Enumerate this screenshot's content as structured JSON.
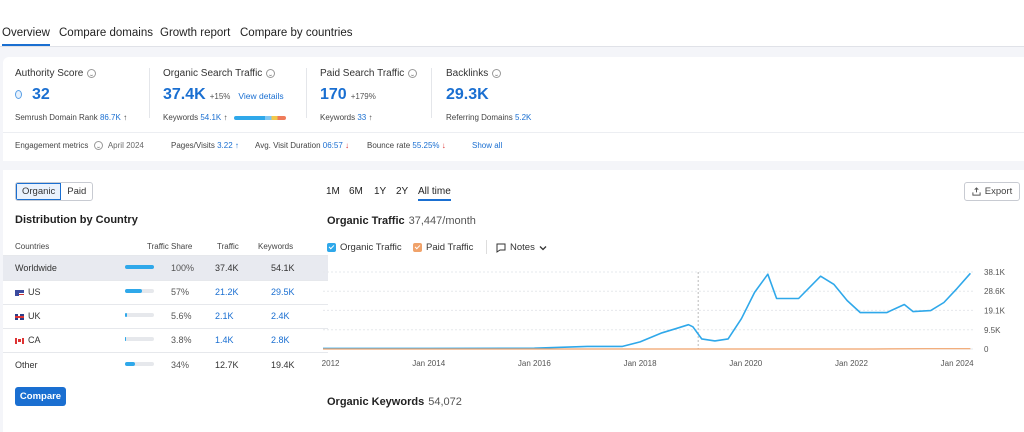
{
  "tabs": [
    {
      "label": "Overview",
      "active": true
    },
    {
      "label": "Compare domains"
    },
    {
      "label": "Growth report"
    },
    {
      "label": "Compare by countries"
    }
  ],
  "metrics": {
    "authority": {
      "label": "Authority Score",
      "value": "32",
      "sub_label": "Semrush Domain Rank",
      "sub_value": "86.7K",
      "sub_arrow": "↑"
    },
    "organic": {
      "label": "Organic Search Traffic",
      "value": "37.4K",
      "change": "+15%",
      "link": "View details",
      "sub_label": "Keywords",
      "sub_value": "54.1K",
      "sub_arrow": "↑"
    },
    "paid": {
      "label": "Paid Search Traffic",
      "value": "170",
      "change": "+179%",
      "sub_label": "Keywords",
      "sub_value": "33",
      "sub_arrow": "↑"
    },
    "backlinks": {
      "label": "Backlinks",
      "value": "29.3K",
      "sub_label": "Referring Domains",
      "sub_value": "5.2K"
    }
  },
  "engagement": {
    "label": "Engagement metrics",
    "date": "April 2024",
    "pages_label": "Pages/Visits",
    "pages_value": "3.22",
    "pages_arrow": "↑",
    "duration_label": "Avg. Visit Duration",
    "duration_value": "06:57",
    "duration_arrow": "↓",
    "bounce_label": "Bounce rate",
    "bounce_value": "55.25%",
    "bounce_arrow": "↓",
    "show_all": "Show all"
  },
  "distribution": {
    "toggle": [
      "Organic",
      "Paid"
    ],
    "title": "Distribution by Country",
    "columns": [
      "Countries",
      "Traffic Share",
      "Traffic",
      "Keywords"
    ],
    "rows": [
      {
        "country": "Worldwide",
        "flag": "",
        "share": "100%",
        "share_frac": 1.0,
        "traffic": "37.4K",
        "keywords": "54.1K",
        "selected": true
      },
      {
        "country": "US",
        "flag": "us",
        "share": "57%",
        "share_frac": 0.57,
        "traffic": "21.2K",
        "keywords": "29.5K"
      },
      {
        "country": "UK",
        "flag": "uk",
        "share": "5.6%",
        "share_frac": 0.056,
        "traffic": "2.1K",
        "keywords": "2.4K"
      },
      {
        "country": "CA",
        "flag": "ca",
        "share": "3.8%",
        "share_frac": 0.038,
        "traffic": "1.4K",
        "keywords": "2.8K"
      },
      {
        "country": "Other",
        "flag": "",
        "share": "34%",
        "share_frac": 0.34,
        "traffic": "12.7K",
        "keywords": "19.4K"
      }
    ],
    "compare_label": "Compare"
  },
  "time_ranges": [
    {
      "label": "1M"
    },
    {
      "label": "6M"
    },
    {
      "label": "1Y"
    },
    {
      "label": "2Y"
    },
    {
      "label": "All time",
      "active": true
    }
  ],
  "export_label": "Export",
  "organic_traffic": {
    "title": "Organic Traffic",
    "value": "37,447/month"
  },
  "legend_items": {
    "organic": "Organic Traffic",
    "paid": "Paid Traffic",
    "notes": "Notes"
  },
  "organic_keywords": {
    "title": "Organic Keywords",
    "value": "54,072"
  },
  "colors": {
    "accent": "#1a6fd1",
    "organic": "#2fa8ea",
    "paid": "#f0a26a"
  },
  "chart_data": {
    "type": "line",
    "x_ticks": [
      "Jan 2012",
      "Jan 2014",
      "Jan 2016",
      "Jan 2018",
      "Jan 2020",
      "Jan 2022",
      "Jan 2024"
    ],
    "y_ticks": [
      "38.1K",
      "28.6K",
      "19.1K",
      "9.5K",
      "0"
    ],
    "ylim": [
      0,
      38100
    ],
    "grid": true,
    "series": [
      {
        "name": "Organic Traffic",
        "color": "#2fa8ea",
        "points": [
          [
            "2012-01",
            300
          ],
          [
            "2014-01",
            300
          ],
          [
            "2016-01",
            400
          ],
          [
            "2017-01",
            1300
          ],
          [
            "2017-09",
            1300
          ],
          [
            "2018-01",
            3500
          ],
          [
            "2018-06",
            8000
          ],
          [
            "2018-09",
            10000
          ],
          [
            "2018-12",
            12000
          ],
          [
            "2019-01",
            11000
          ],
          [
            "2019-03",
            5000
          ],
          [
            "2019-06",
            4000
          ],
          [
            "2019-09",
            5000
          ],
          [
            "2019-12",
            15000
          ],
          [
            "2020-03",
            28000
          ],
          [
            "2020-06",
            37000
          ],
          [
            "2020-08",
            25000
          ],
          [
            "2021-01",
            25000
          ],
          [
            "2021-06",
            36000
          ],
          [
            "2021-09",
            32000
          ],
          [
            "2021-12",
            24000
          ],
          [
            "2022-03",
            18000
          ],
          [
            "2022-09",
            18000
          ],
          [
            "2023-01",
            22000
          ],
          [
            "2023-03",
            18500
          ],
          [
            "2023-07",
            19000
          ],
          [
            "2023-10",
            23000
          ],
          [
            "2024-01",
            30000
          ],
          [
            "2024-04",
            37447
          ]
        ]
      },
      {
        "name": "Paid Traffic",
        "color": "#f0a26a",
        "points": [
          [
            "2012-01",
            0
          ],
          [
            "2022-06",
            0
          ],
          [
            "2023-06",
            150
          ],
          [
            "2024-04",
            170
          ]
        ]
      }
    ]
  }
}
